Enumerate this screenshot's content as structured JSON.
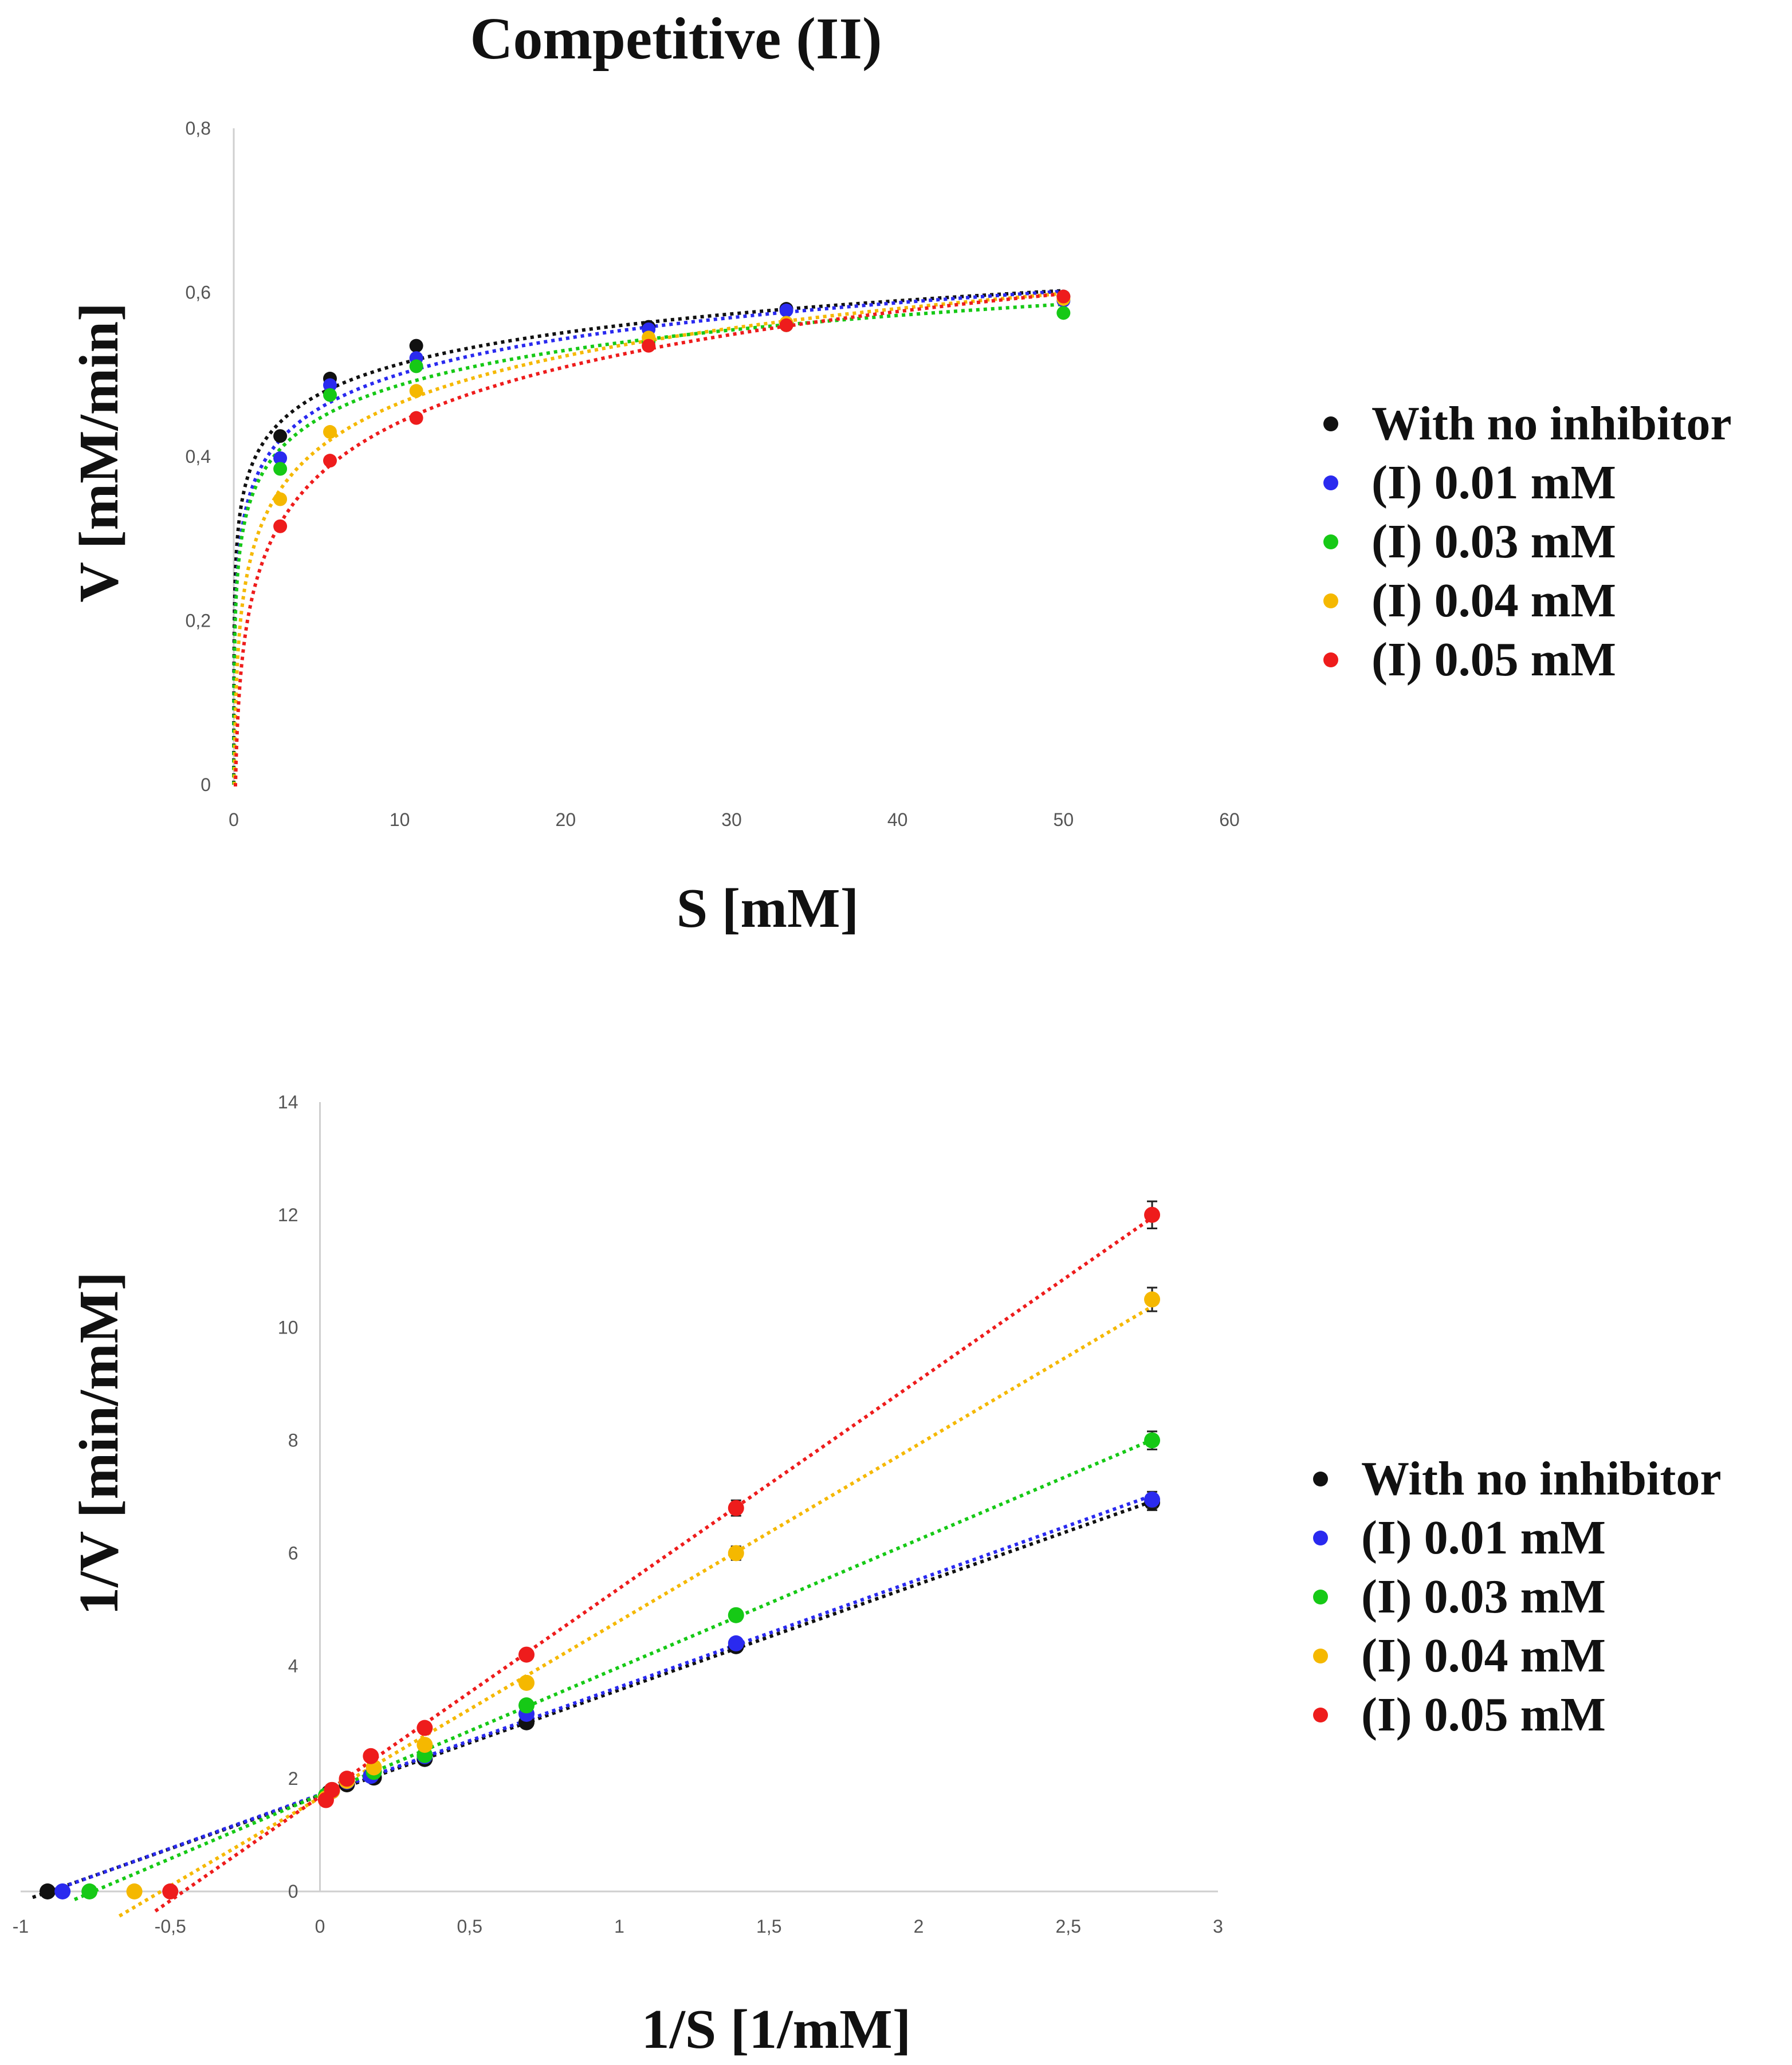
{
  "page": {
    "title": "Competitive (II)"
  },
  "legend": {
    "items": [
      {
        "label": "With no inhibitor",
        "color": "#111111"
      },
      {
        "label": "(I) 0.01 mM",
        "color": "#2a2aef"
      },
      {
        "label": "(I) 0.03 mM",
        "color": "#16c916"
      },
      {
        "label": "(I) 0.04 mM",
        "color": "#f5b800"
      },
      {
        "label": "(I) 0.05 mM",
        "color": "#ee1c1c"
      }
    ]
  },
  "chart_data": [
    {
      "type": "scatter",
      "title": "Competitive (II)",
      "xlabel": "S [mM]",
      "ylabel": "V [mM/min]",
      "xlim": [
        0,
        60
      ],
      "ylim": [
        0,
        0.8
      ],
      "xticks": [
        0,
        10,
        20,
        30,
        40,
        50,
        60
      ],
      "xtick_labels": [
        "0",
        "10",
        "20",
        "30",
        "40",
        "50",
        "60"
      ],
      "yticks": [
        0,
        0.2,
        0.4,
        0.6,
        0.8
      ],
      "ytick_labels": [
        "0",
        "0,2",
        "0,4",
        "0,6",
        "0,8"
      ],
      "trendline": "logarithmic, dotted",
      "x": [
        2.8,
        5.8,
        11.0,
        25.0,
        33.3,
        50.0
      ],
      "series": [
        {
          "name": "With no inhibitor",
          "values": [
            0.425,
            0.495,
            0.535,
            0.558,
            0.58,
            0.595
          ]
        },
        {
          "name": "(I) 0.01 mM",
          "values": [
            0.398,
            0.487,
            0.52,
            0.555,
            0.578,
            0.59
          ]
        },
        {
          "name": "(I) 0.03 mM",
          "values": [
            0.385,
            0.475,
            0.51,
            0.54,
            0.56,
            0.575
          ]
        },
        {
          "name": "(I) 0.04 mM",
          "values": [
            0.348,
            0.43,
            0.48,
            0.545,
            0.563,
            0.592
          ]
        },
        {
          "name": "(I) 0.05 mM",
          "values": [
            0.315,
            0.395,
            0.447,
            0.535,
            0.56,
            0.595
          ]
        }
      ]
    },
    {
      "type": "scatter",
      "xlabel": "1/S [1/mM]",
      "ylabel": "1/V [min/mM]",
      "xlim": [
        -1,
        3
      ],
      "ylim": [
        0,
        14
      ],
      "xticks": [
        -1,
        -0.5,
        0,
        0.5,
        1,
        1.5,
        2,
        2.5,
        3
      ],
      "xtick_labels": [
        "-1",
        "-0,5",
        "0",
        "0,5",
        "1",
        "1,5",
        "2",
        "2,5",
        "3"
      ],
      "yticks": [
        0,
        2,
        4,
        6,
        8,
        10,
        12,
        14
      ],
      "ytick_labels": [
        "0",
        "2",
        "4",
        "6",
        "8",
        "10",
        "12",
        "14"
      ],
      "trendline": "linear, dotted",
      "series": [
        {
          "name": "With no inhibitor",
          "x": [
            -0.91,
            0.02,
            0.03,
            0.09,
            0.18,
            0.35,
            0.69,
            1.39,
            2.78
          ],
          "y": [
            0,
            1.68,
            1.75,
            1.9,
            2.02,
            2.35,
            3.0,
            4.35,
            6.9
          ]
        },
        {
          "name": "(I) 0.01 mM",
          "x": [
            -0.86,
            0.02,
            0.04,
            0.09,
            0.17,
            0.35,
            0.69,
            1.39,
            2.78
          ],
          "y": [
            0,
            1.69,
            1.78,
            1.95,
            2.05,
            2.4,
            3.15,
            4.4,
            6.95
          ]
        },
        {
          "name": "(I) 0.03 mM",
          "x": [
            -0.77,
            0.02,
            0.04,
            0.09,
            0.18,
            0.35,
            0.69,
            1.39,
            2.78
          ],
          "y": [
            0,
            1.7,
            1.8,
            1.98,
            2.12,
            2.42,
            3.3,
            4.9,
            8.0
          ]
        },
        {
          "name": "(I) 0.04 mM",
          "x": [
            -0.62,
            0.02,
            0.04,
            0.09,
            0.18,
            0.35,
            0.69,
            1.39,
            2.78
          ],
          "y": [
            0,
            1.65,
            1.78,
            1.96,
            2.2,
            2.6,
            3.7,
            6.0,
            10.5
          ]
        },
        {
          "name": "(I) 0.05 mM",
          "x": [
            -0.5,
            0.02,
            0.04,
            0.09,
            0.17,
            0.35,
            0.69,
            1.39,
            2.78
          ],
          "y": [
            0,
            1.62,
            1.8,
            2.0,
            2.4,
            2.9,
            4.2,
            6.8,
            12.0
          ]
        }
      ]
    }
  ]
}
